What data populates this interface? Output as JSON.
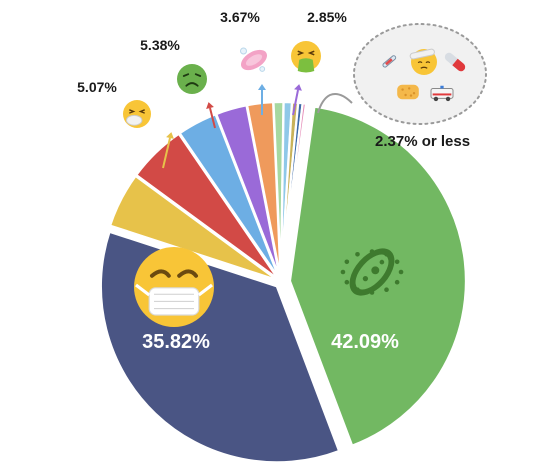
{
  "chart_data": {
    "type": "pie",
    "title": "",
    "slices": [
      {
        "name": "",
        "value": 42.09,
        "label": "42.09%",
        "color": "#72b862",
        "icon": "microbe-icon"
      },
      {
        "name": "",
        "value": 35.82,
        "label": "35.82%",
        "color": "#4a5584",
        "icon": "medical-mask-face-icon"
      },
      {
        "name": "",
        "value": 5.07,
        "label": "5.07%",
        "color": "#e7c24a",
        "icon": "sneezing-face-icon"
      },
      {
        "name": "",
        "value": 5.38,
        "label": "5.38%",
        "color": "#d24a46",
        "icon": "nauseated-face-icon"
      },
      {
        "name": "",
        "value": 3.67,
        "label": "3.67%",
        "color": "#6daee4",
        "icon": "soap-icon"
      },
      {
        "name": "",
        "value": 2.85,
        "label": "2.85%",
        "color": "#9a6ad8",
        "icon": "vomiting-face-icon"
      },
      {
        "name": "",
        "value": 2.37,
        "label": "",
        "color": "#ef9a5c",
        "icon": ""
      },
      {
        "name": "",
        "value": 0.9,
        "label": "",
        "color": "#a6d8a0",
        "icon": ""
      },
      {
        "name": "",
        "value": 0.75,
        "label": "",
        "color": "#8fc8e8",
        "icon": ""
      },
      {
        "name": "",
        "value": 0.55,
        "label": "",
        "color": "#c9b25a",
        "icon": ""
      },
      {
        "name": "",
        "value": 0.4,
        "label": "",
        "color": "#3d6aa8",
        "icon": ""
      },
      {
        "name": "",
        "value": 0.3,
        "label": "",
        "color": "#e58cb8",
        "icon": ""
      }
    ],
    "group_label": "2.37% or less",
    "group_icons": [
      "syringe-icon",
      "face-with-head-bandage-icon",
      "pill-icon",
      "sponge-icon",
      "ambulance-icon"
    ]
  }
}
